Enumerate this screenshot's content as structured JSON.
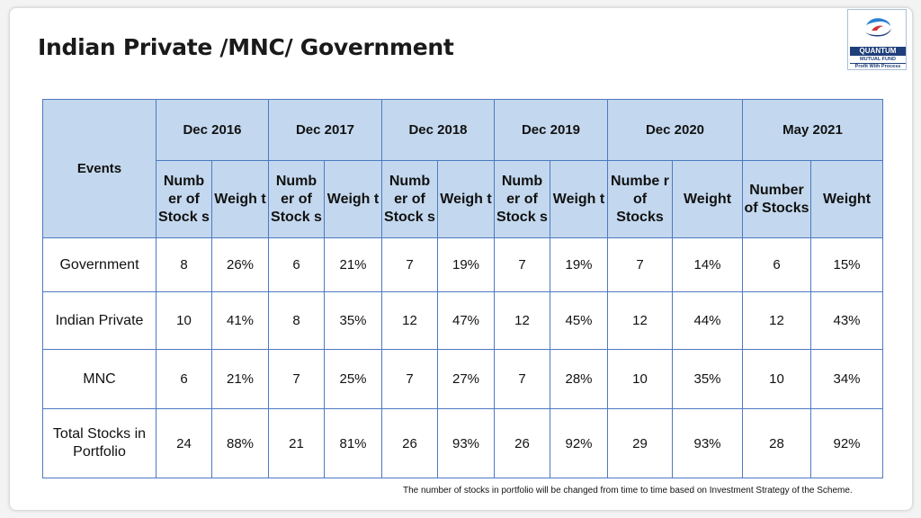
{
  "title": "Indian Private /MNC/ Government",
  "logo": {
    "brand": "QUANTUM",
    "tagline_1": "MUTUAL FUND",
    "tagline_2": "Profit With Process"
  },
  "table": {
    "row_header": "Events",
    "periods": [
      "Dec 2016",
      "Dec 2017",
      "Dec 2018",
      "Dec 2019",
      "Dec 2020",
      "May 2021"
    ],
    "sub_headers": [
      {
        "count": "Numb er of Stock s",
        "weight": "Weigh t"
      },
      {
        "count": "Numb er of Stock s",
        "weight": "Weigh t"
      },
      {
        "count": "Numb er of Stock s",
        "weight": "Weigh t"
      },
      {
        "count": "Numb er of Stock s",
        "weight": "Weigh t"
      },
      {
        "count": "Numbe r of Stocks",
        "weight": "Weight"
      },
      {
        "count": "Number of Stocks",
        "weight": "Weight"
      }
    ],
    "rows": [
      {
        "label": "Government",
        "cells": [
          "8",
          "26%",
          "6",
          "21%",
          "7",
          "19%",
          "7",
          "19%",
          "7",
          "14%",
          "6",
          "15%"
        ]
      },
      {
        "label": "Indian Private",
        "cells": [
          "10",
          "41%",
          "8",
          "35%",
          "12",
          "47%",
          "12",
          "45%",
          "12",
          "44%",
          "12",
          "43%"
        ]
      },
      {
        "label": "MNC",
        "cells": [
          "6",
          "21%",
          "7",
          "25%",
          "7",
          "27%",
          "7",
          "28%",
          "10",
          "35%",
          "10",
          "34%"
        ]
      },
      {
        "label": "Total Stocks in Portfolio",
        "cells": [
          "24",
          "88%",
          "21",
          "81%",
          "26",
          "93%",
          "26",
          "92%",
          "29",
          "93%",
          "28",
          "92%"
        ]
      }
    ]
  },
  "footnote": "The number of stocks in portfolio will be changed from time to time based on Investment Strategy of the Scheme.",
  "colors": {
    "header_fill": "#c3d8ee",
    "border": "#4d79c2",
    "logo_navy": "#1f3f7a",
    "logo_red": "#d32f2f",
    "logo_blue": "#2a7fd1"
  }
}
